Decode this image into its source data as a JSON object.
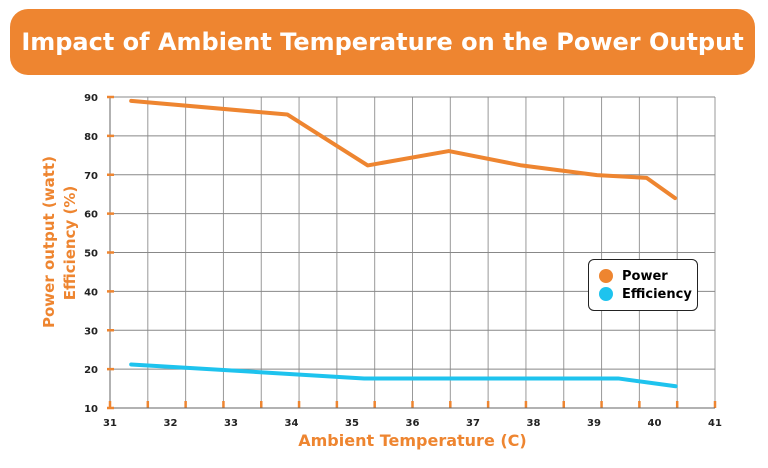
{
  "chart_data": {
    "type": "line",
    "title": "Impact of Ambient Temperature on the Power Output",
    "xlabel": "Ambient Temperature (C)",
    "ylabel": [
      "Power output (watt)",
      "Efficiency (%)"
    ],
    "xlim": [
      31,
      41
    ],
    "ylim": [
      10,
      90
    ],
    "xticks": [
      31,
      32,
      33,
      34,
      35,
      36,
      37,
      38,
      39,
      40,
      41
    ],
    "yticks": [
      10,
      20,
      30,
      40,
      50,
      60,
      70,
      80,
      90
    ],
    "grid": true,
    "legend_position": "right",
    "series": [
      {
        "name": "Power",
        "color": "#EE8530",
        "x": [
          31.35,
          33.93,
          35.26,
          36.6,
          37.8,
          39.05,
          39.87,
          40.34
        ],
        "y": [
          89.0,
          85.5,
          72.4,
          76.1,
          72.4,
          69.9,
          69.2,
          64.0
        ]
      },
      {
        "name": "Efficiency",
        "color": "#1EC3EE",
        "x": [
          31.35,
          35.2,
          39.4,
          40.35
        ],
        "y": [
          21.2,
          17.6,
          17.6,
          15.6
        ]
      }
    ]
  }
}
